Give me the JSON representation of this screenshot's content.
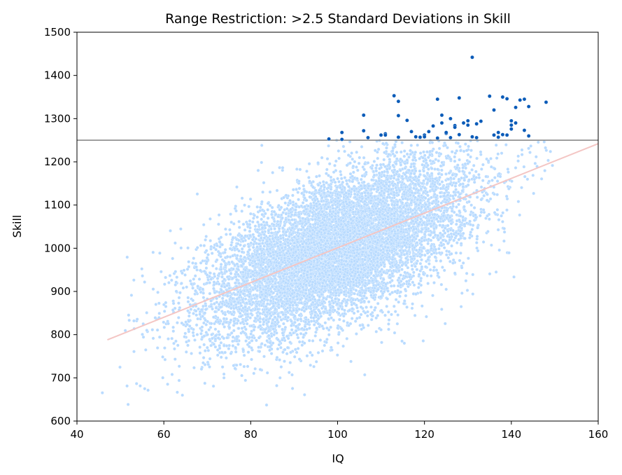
{
  "chart_data": {
    "type": "scatter",
    "title": "Range Restriction: >2.5 Standard Deviations in Skill",
    "xlabel": "IQ",
    "ylabel": "Skill",
    "xlim": [
      40,
      160
    ],
    "ylim": [
      600,
      1500
    ],
    "xticks": [
      40,
      60,
      80,
      100,
      120,
      140,
      160
    ],
    "yticks": [
      600,
      700,
      800,
      900,
      1000,
      1100,
      1200,
      1300,
      1400,
      1500
    ],
    "grid": false,
    "colors": {
      "below_threshold": "#b9dbff",
      "above_threshold": "#0a5bb8",
      "threshold_line": "#808080",
      "regression_line": "#f4c6c4"
    },
    "threshold": {
      "y": 1250
    },
    "regression_line": {
      "x": [
        47,
        160
      ],
      "y": [
        788,
        1242
      ]
    },
    "background_cloud": {
      "description_n": 10000,
      "x_mean": 100,
      "x_sd": 15,
      "y_mean": 1000,
      "y_sd": 100,
      "correlation": 0.6
    },
    "series": [
      {
        "points": [
          [
            98,
            1253
          ],
          [
            101,
            1252
          ],
          [
            101,
            1268
          ],
          [
            106,
            1308
          ],
          [
            106,
            1272
          ],
          [
            107,
            1256
          ],
          [
            110,
            1262
          ],
          [
            111,
            1265
          ],
          [
            111,
            1262
          ],
          [
            113,
            1353
          ],
          [
            114,
            1340
          ],
          [
            114,
            1307
          ],
          [
            114,
            1257
          ],
          [
            116,
            1296
          ],
          [
            117,
            1270
          ],
          [
            118,
            1258
          ],
          [
            119,
            1257
          ],
          [
            120,
            1262
          ],
          [
            120,
            1258
          ],
          [
            121,
            1270
          ],
          [
            122,
            1283
          ],
          [
            123,
            1255
          ],
          [
            123,
            1345
          ],
          [
            124,
            1308
          ],
          [
            124,
            1290
          ],
          [
            125,
            1266
          ],
          [
            125,
            1268
          ],
          [
            126,
            1300
          ],
          [
            126,
            1256
          ],
          [
            127,
            1284
          ],
          [
            127,
            1280
          ],
          [
            128,
            1263
          ],
          [
            128,
            1348
          ],
          [
            129,
            1290
          ],
          [
            130,
            1295
          ],
          [
            130,
            1285
          ],
          [
            131,
            1258
          ],
          [
            131,
            1442
          ],
          [
            132,
            1256
          ],
          [
            132,
            1288
          ],
          [
            133,
            1294
          ],
          [
            135,
            1352
          ],
          [
            136,
            1320
          ],
          [
            136,
            1262
          ],
          [
            137,
            1268
          ],
          [
            137,
            1257
          ],
          [
            138,
            1263
          ],
          [
            138,
            1350
          ],
          [
            139,
            1346
          ],
          [
            139,
            1262
          ],
          [
            140,
            1295
          ],
          [
            140,
            1285
          ],
          [
            140,
            1276
          ],
          [
            141,
            1326
          ],
          [
            141,
            1290
          ],
          [
            142,
            1343
          ],
          [
            143,
            1345
          ],
          [
            143,
            1273
          ],
          [
            144,
            1328
          ],
          [
            144,
            1260
          ],
          [
            148,
            1338
          ]
        ]
      }
    ]
  }
}
